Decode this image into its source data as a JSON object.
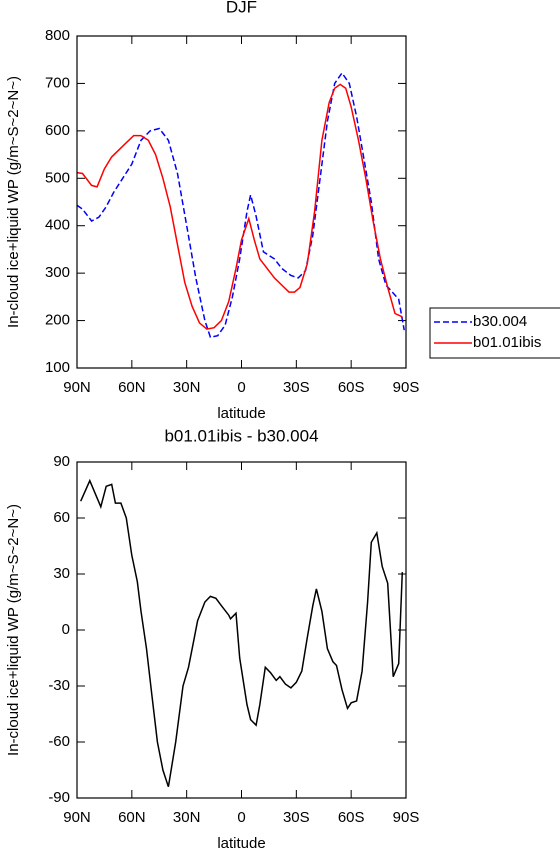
{
  "chart_data": [
    {
      "type": "line",
      "title": "DJF",
      "xlabel": "latitude",
      "ylabel": "In-cloud ice+liquid WP (g/m~S~2~N~)",
      "legend": "right",
      "xlim": [
        90,
        -90
      ],
      "xticks": [
        {
          "value": 90,
          "label": "90N"
        },
        {
          "value": 60,
          "label": "60N"
        },
        {
          "value": 30,
          "label": "30N"
        },
        0,
        {
          "value": -30,
          "label": "30S"
        },
        {
          "value": -60,
          "label": "60S"
        },
        {
          "value": -90,
          "label": "90S"
        }
      ],
      "ylim": [
        100,
        800
      ],
      "yticks": [
        100,
        200,
        300,
        400,
        500,
        600,
        700,
        800
      ],
      "series": [
        {
          "name": "b30.004",
          "color": "#0000ff",
          "line_style": "dashed",
          "x": [
            90,
            87,
            82,
            78,
            74,
            70,
            65,
            60,
            55,
            50,
            45,
            40,
            35,
            30,
            25,
            20,
            17,
            13,
            9,
            5,
            1,
            -3,
            -5,
            -8,
            -12,
            -18,
            -22,
            -27,
            -31,
            -35,
            -39,
            -43,
            -47,
            -51,
            -55,
            -59,
            -63,
            -67,
            -71,
            -75,
            -79,
            -83,
            -86,
            -89
          ],
          "values": [
            443,
            435,
            410,
            418,
            440,
            470,
            500,
            530,
            580,
            600,
            605,
            580,
            510,
            400,
            290,
            200,
            165,
            168,
            190,
            250,
            330,
            430,
            465,
            420,
            345,
            330,
            310,
            295,
            290,
            305,
            380,
            500,
            620,
            700,
            722,
            700,
            630,
            540,
            450,
            330,
            275,
            258,
            245,
            180
          ]
        },
        {
          "name": "b01.01ibis",
          "color": "#ff0000",
          "line_style": "solid",
          "x": [
            90,
            87,
            82,
            79,
            75,
            71,
            67,
            63,
            59,
            55,
            51,
            47,
            43,
            39,
            35,
            31,
            27,
            23,
            19,
            15,
            11,
            7,
            3,
            0,
            -4,
            -7,
            -10,
            -14,
            -18,
            -22,
            -26,
            -29,
            -32,
            -36,
            -40,
            -44,
            -48,
            -51,
            -54,
            -57,
            -60,
            -64,
            -68,
            -72,
            -76,
            -80,
            -84,
            -88
          ],
          "values": [
            512,
            510,
            485,
            482,
            520,
            545,
            560,
            575,
            590,
            590,
            580,
            550,
            500,
            440,
            360,
            280,
            230,
            195,
            182,
            185,
            200,
            240,
            310,
            370,
            415,
            370,
            330,
            310,
            290,
            275,
            260,
            260,
            270,
            320,
            430,
            580,
            660,
            690,
            698,
            690,
            650,
            580,
            500,
            410,
            330,
            270,
            215,
            208
          ]
        }
      ]
    },
    {
      "type": "line",
      "title": "b01.01ibis - b30.004",
      "xlabel": "latitude",
      "ylabel": "In-cloud ice+liquid WP (g/m~S~2~N~)",
      "xlim": [
        90,
        -90
      ],
      "xticks": [
        {
          "value": 90,
          "label": "90N"
        },
        {
          "value": 60,
          "label": "60N"
        },
        {
          "value": 30,
          "label": "30N"
        },
        0,
        {
          "value": -30,
          "label": "30S"
        },
        {
          "value": -60,
          "label": "60S"
        },
        {
          "value": -90,
          "label": "90S"
        }
      ],
      "ylim": [
        -90,
        90
      ],
      "yticks": [
        -90,
        -60,
        -30,
        0,
        30,
        60,
        90
      ],
      "series": [
        {
          "color": "#000000",
          "line_style": "solid",
          "x": [
            88,
            83,
            77,
            74,
            71,
            69,
            66,
            63,
            60,
            57,
            55,
            52,
            49,
            46,
            43,
            40,
            36,
            32,
            29,
            26,
            24,
            20,
            17,
            14,
            11,
            7,
            6,
            3,
            1,
            -3,
            -5,
            -8,
            -10,
            -13,
            -16,
            -19,
            -21,
            -24,
            -27,
            -30,
            -33,
            -36,
            -39,
            -41,
            -44,
            -47,
            -50,
            -52,
            -55,
            -58,
            -60,
            -63,
            -66,
            -69,
            -71,
            -74,
            -77,
            -80,
            -83,
            -86,
            -88
          ],
          "values": [
            69,
            80,
            66,
            77,
            78,
            68,
            68,
            60,
            40,
            26,
            10,
            -10,
            -35,
            -60,
            -75,
            -84,
            -60,
            -30,
            -20,
            -5,
            5,
            15,
            18,
            17,
            13,
            8,
            6,
            9,
            -15,
            -40,
            -48,
            -51,
            -40,
            -20,
            -23,
            -27,
            -25,
            -29,
            -31,
            -28,
            -22,
            -4,
            13,
            22,
            10,
            -10,
            -17,
            -19,
            -32,
            -42,
            -39,
            -38,
            -22,
            15,
            47,
            52,
            34,
            25,
            -25,
            -18,
            31
          ]
        }
      ]
    }
  ]
}
